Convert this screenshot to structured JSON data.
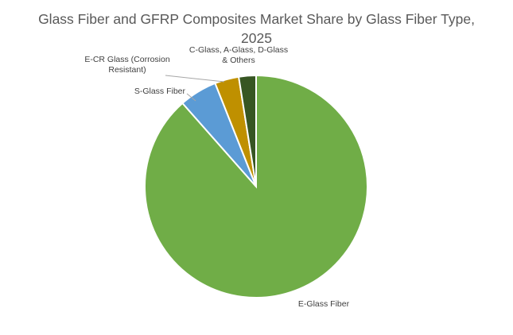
{
  "chart_data": {
    "type": "pie",
    "title": "Glass Fiber and GFRP Composites Market Share by Glass Fiber Type, 2025",
    "categories": [
      "E-Glass Fiber",
      "S-Glass Fiber",
      "E-CR Glass (Corrosion Resistant)",
      "C-Glass, A-Glass, D-Glass & Others"
    ],
    "values": [
      88.5,
      5.5,
      3.5,
      2.5
    ],
    "colors": [
      "#70ad47",
      "#5b9bd5",
      "#bf9000",
      "#375623"
    ],
    "label_lines": [
      [
        "E-Glass Fiber"
      ],
      [
        "S-Glass Fiber"
      ],
      [
        "E-CR Glass (Corrosion",
        "Resistant)"
      ],
      [
        "C-Glass, A-Glass, D-Glass",
        "& Others"
      ]
    ],
    "start_angle_deg": 0,
    "direction": "clockwise",
    "legend": "none"
  }
}
